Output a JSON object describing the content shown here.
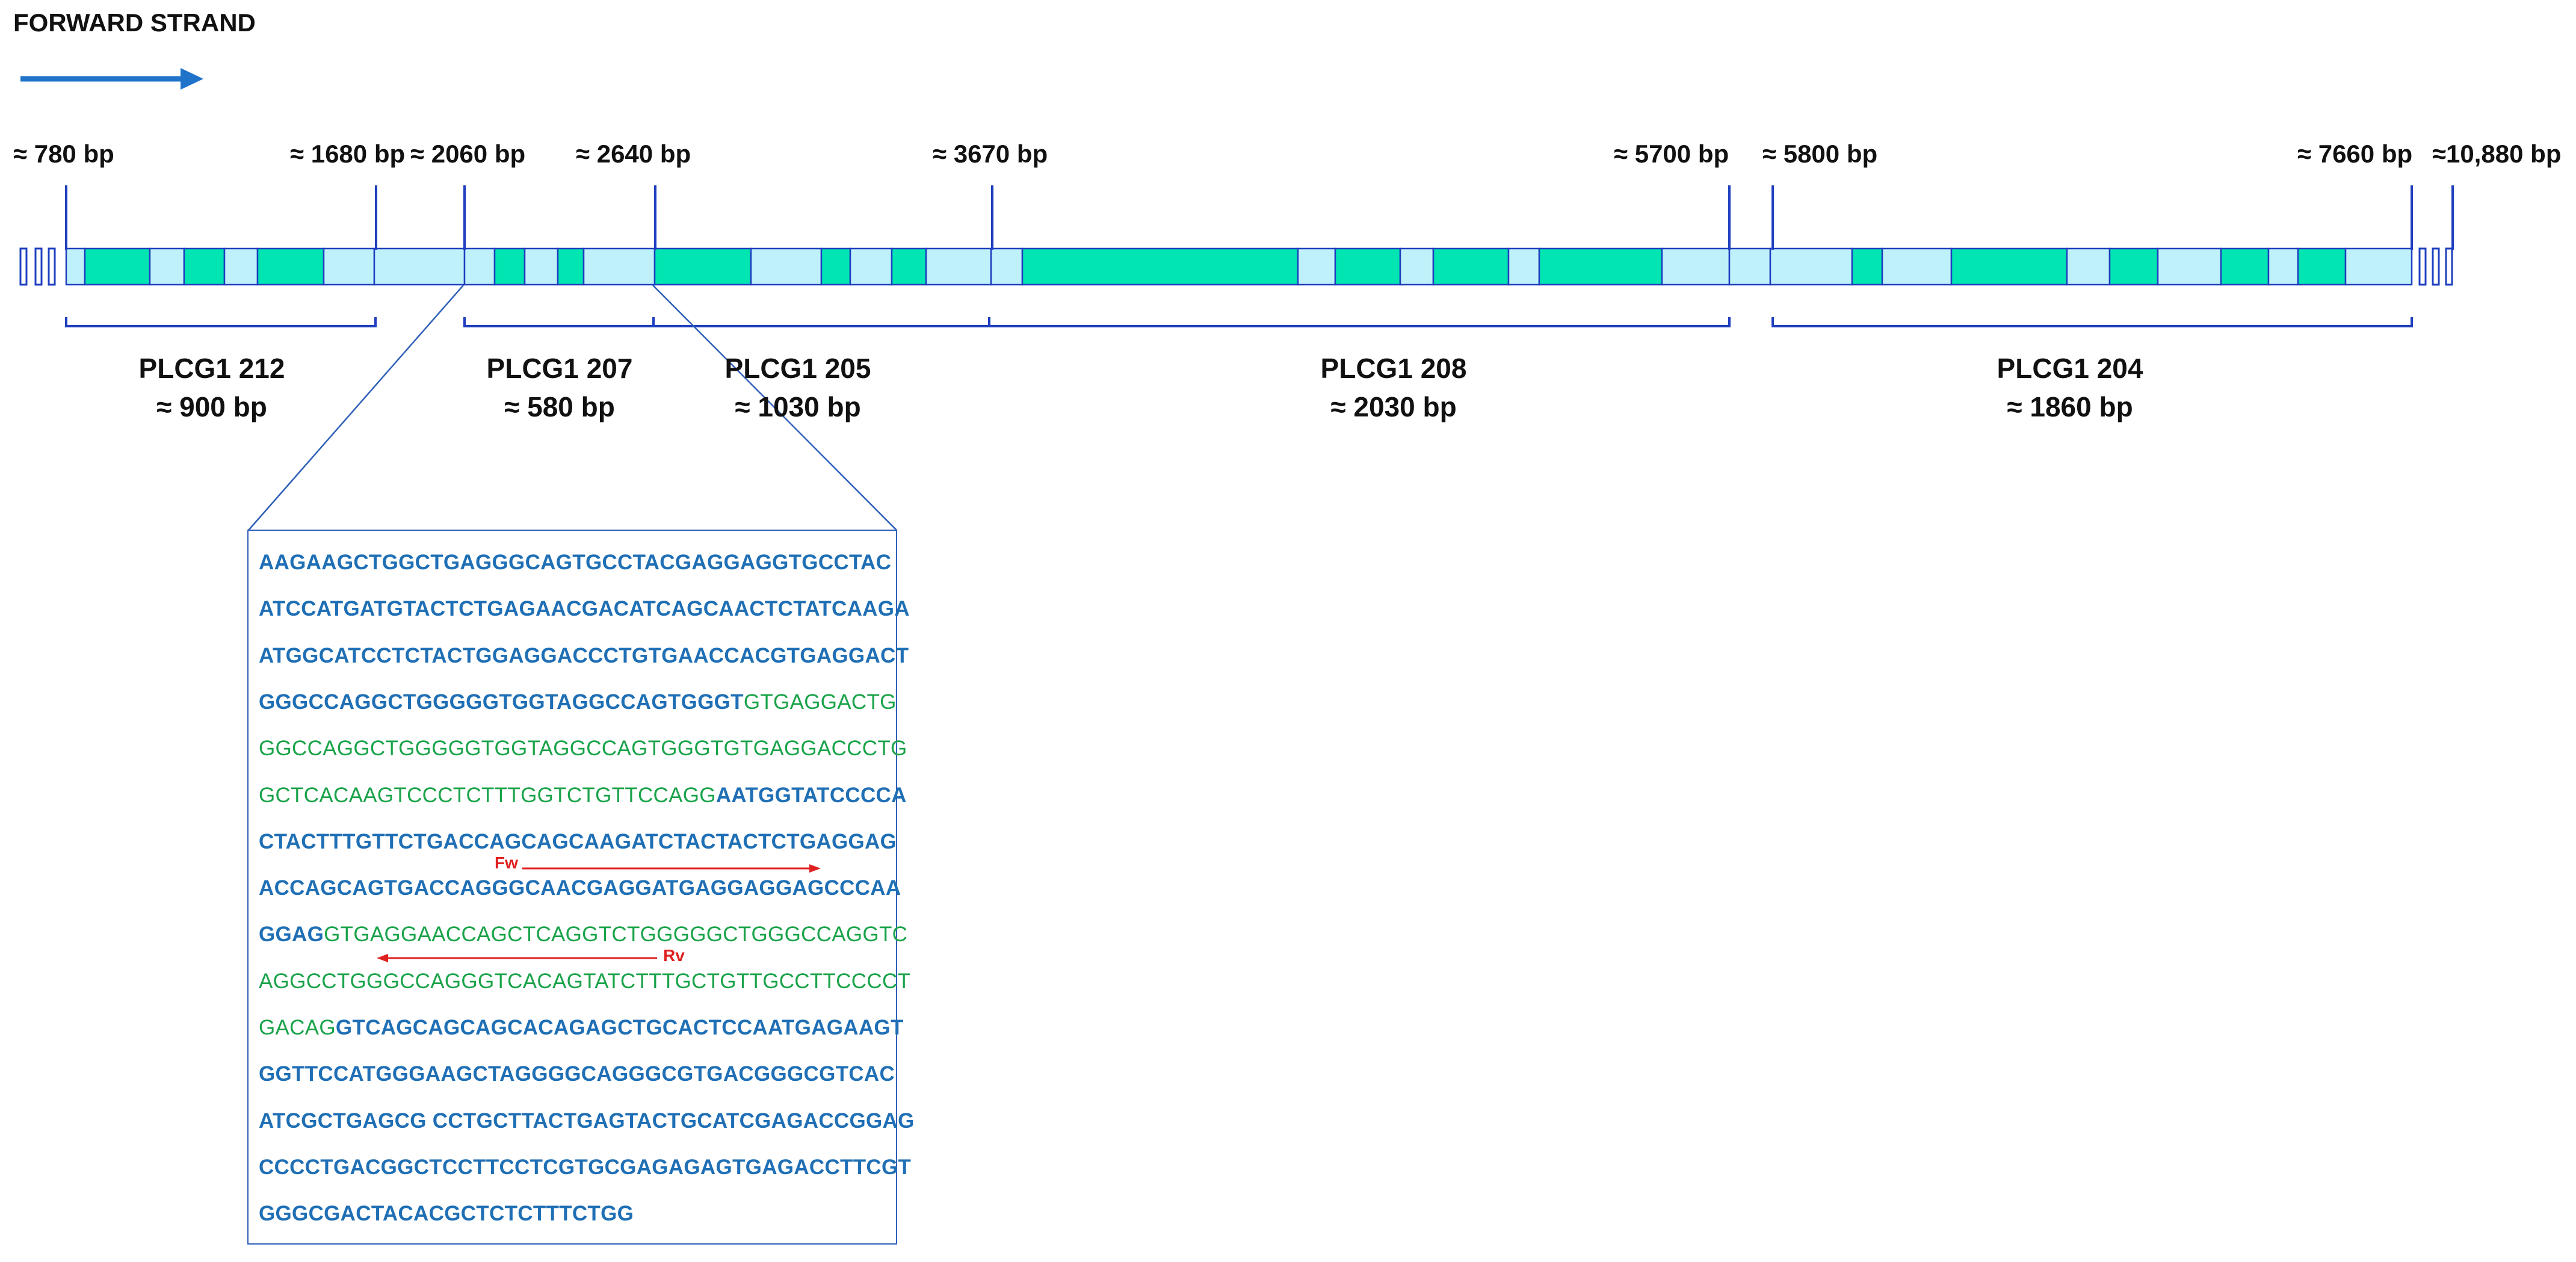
{
  "diagram": {
    "title": "FORWARD STRAND",
    "colors": {
      "exon_coding": "#00e5b2",
      "exon_utr": "#bff1fb",
      "outline": "#1f3fbf",
      "bracket": "#1f3fbf",
      "arrow": "#1f73c9",
      "exon_text": "#1f6fb5",
      "intron_text": "#1aa34a",
      "primer": "#e02020"
    },
    "positions": [
      {
        "label": "≈ 780 bp"
      },
      {
        "label": "≈ 1680 bp"
      },
      {
        "label": "≈ 2060 bp"
      },
      {
        "label": "≈ 2640 bp"
      },
      {
        "label": "≈ 3670 bp"
      },
      {
        "label": "≈  5700 bp"
      },
      {
        "label": "≈ 5800 bp"
      },
      {
        "label": "≈ 7660 bp"
      },
      {
        "label": "≈10,880 bp"
      }
    ],
    "transcripts": [
      {
        "name": "PLCG1 212",
        "length": "≈ 900 bp"
      },
      {
        "name": "PLCG1 207",
        "length": "≈ 580 bp"
      },
      {
        "name": "PLCG1 205",
        "length": "≈ 1030 bp"
      },
      {
        "name": "PLCG1 208",
        "length": "≈ 2030 bp"
      },
      {
        "name": "PLCG1 204",
        "length": "≈ 1860 bp"
      }
    ],
    "primers": {
      "forward": "Fw",
      "reverse": "Rv"
    },
    "sequence_lines": [
      [
        {
          "t": "AAGAAGCTGGCTGAGGGCAGTGCCTACGAGGAGGTGCCTAC",
          "k": "exon"
        }
      ],
      [
        {
          "t": "ATCCATGATGTACTCTGAGAACGACATCAGCAACTCTATCAAGA",
          "k": "exon"
        }
      ],
      [
        {
          "t": "ATGGCATCCTCTACTGGAGGACCCTGTGAACCACGTGAGGACT",
          "k": "exon"
        }
      ],
      [
        {
          "t": "GGGCCAGGCTGGGGGTGGTAGGCCAGTGGGT",
          "k": "exon"
        },
        {
          "t": "GTGAGGACTG",
          "k": "intron"
        }
      ],
      [
        {
          "t": "GGCCAGGCTGGGGGTGGTAGGCCAGTGGGTGTGAGGACCCTG",
          "k": "intron"
        }
      ],
      [
        {
          "t": "GCTCACAAGTCCCTCTTTGGTCTGTTCCAGG",
          "k": "intron"
        },
        {
          "t": "AATGGTATCCCCA",
          "k": "exon"
        }
      ],
      [
        {
          "t": "CTACTTTGTTCTGACCAGCAGCAAGATCTACTACTCTGAGGAG",
          "k": "exon"
        }
      ],
      [
        {
          "t": "ACCAGCAGTGACCAGGGCAACGAGGATGAGGAGGAGCCCAA",
          "k": "exon"
        }
      ],
      [
        {
          "t": "GGAG",
          "k": "exon"
        },
        {
          "t": "GTGAGGAACCAGCTCAGGTCTGGGGGCTGGGCCAGGTC",
          "k": "intron"
        }
      ],
      [
        {
          "t": "AGGCCTGGGCCAGGGTCACAGTATCTTTGCTGTTGCCTTCCCCT",
          "k": "intron"
        }
      ],
      [
        {
          "t": "GACAG",
          "k": "intron"
        },
        {
          "t": "GTCAGCAGCAGCACAGAGCTGCACTCCAATGAGAAGT",
          "k": "exon"
        }
      ],
      [
        {
          "t": "GGTTCCATGGGAAGCTAGGGGCAGGGCGTGACGGGCGTCAC",
          "k": "exon"
        }
      ],
      [
        {
          "t": "ATCGCTGAGCG CCTGCTTACTGAGTACTGCATCGAGACCGGAG",
          "k": "exon"
        }
      ],
      [
        {
          "t": "CCCCTGACGGCTCCTTCCTCGTGCGAGAGAGTGAGACCTTCGT",
          "k": "exon"
        }
      ],
      [
        {
          "t": "GGGCGACTACACGCTCTCTTTCTGG",
          "k": "exon"
        }
      ]
    ]
  }
}
